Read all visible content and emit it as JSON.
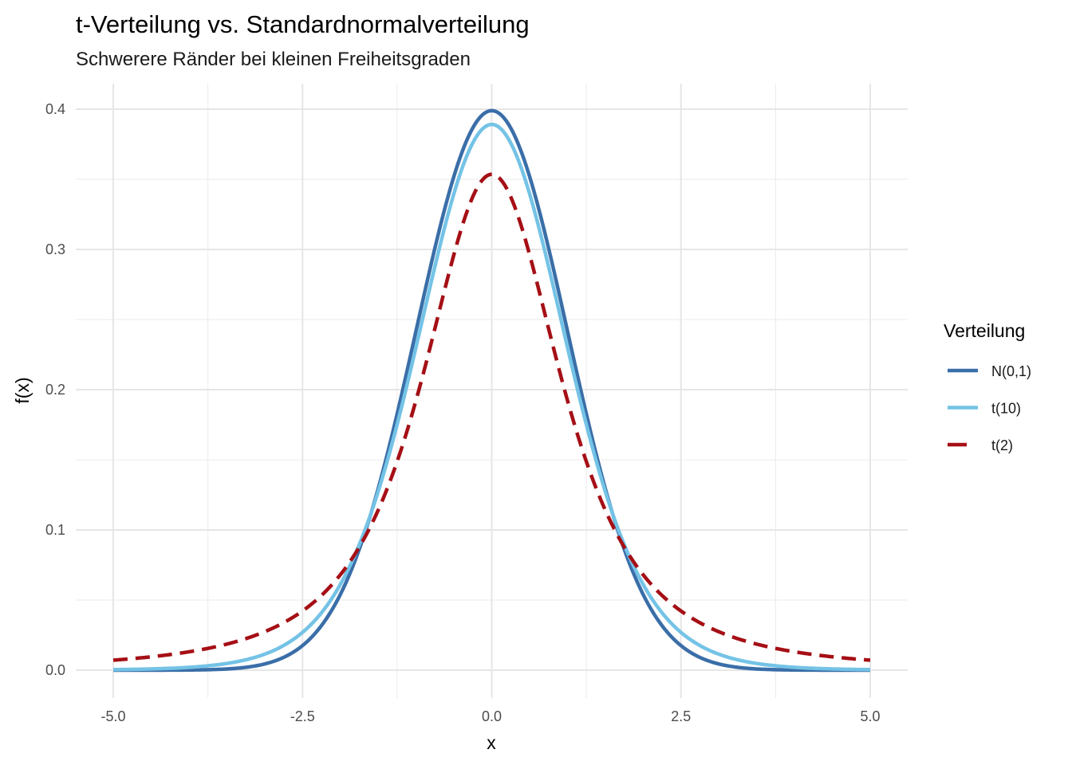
{
  "chart_data": {
    "type": "line",
    "title": "t-Verteilung vs. Standardnormalverteilung",
    "subtitle": "Schwerere Ränder bei kleinen Freiheitsgraden",
    "xlabel": "x",
    "ylabel": "f(x)",
    "xlim": [
      -5,
      5
    ],
    "ylim": [
      0,
      0.4
    ],
    "x_ticks": [
      -5,
      -2.5,
      0,
      2.5,
      5
    ],
    "x_tick_labels": [
      "-5.0",
      "-2.5",
      "0.0",
      "2.5",
      "5.0"
    ],
    "y_ticks": [
      0,
      0.1,
      0.2,
      0.3,
      0.4
    ],
    "y_tick_labels": [
      "0.0",
      "0.1",
      "0.2",
      "0.3",
      "0.4"
    ],
    "grid": true,
    "legend": {
      "title": "Verteilung",
      "position": "right"
    },
    "x": [
      0,
      0.5,
      1,
      1.5,
      2,
      2.5,
      3,
      3.5,
      4,
      4.5,
      5
    ],
    "symmetric_about_zero": true,
    "series": [
      {
        "name": "N(0,1)",
        "distribution": "normal",
        "df": null,
        "color": "#3A6EA8",
        "dash": "solid",
        "values": [
          0.3989,
          0.3521,
          0.242,
          0.1295,
          0.054,
          0.0175,
          0.0044,
          0.0009,
          0.0001,
          0.0,
          0.0
        ]
      },
      {
        "name": "t(10)",
        "distribution": "t",
        "df": 10,
        "color": "#74C3E6",
        "dash": "solid",
        "values": [
          0.3891,
          0.3397,
          0.2304,
          0.1275,
          0.0611,
          0.0269,
          0.0114,
          0.0048,
          0.002,
          0.0009,
          0.0004
        ]
      },
      {
        "name": "t(2)",
        "distribution": "t",
        "df": 2,
        "color": "#A50F15",
        "dash": "dashed",
        "values": [
          0.3536,
          0.2963,
          0.1925,
          0.1141,
          0.068,
          0.0422,
          0.0274,
          0.0186,
          0.0131,
          0.0095,
          0.0071
        ]
      }
    ]
  }
}
